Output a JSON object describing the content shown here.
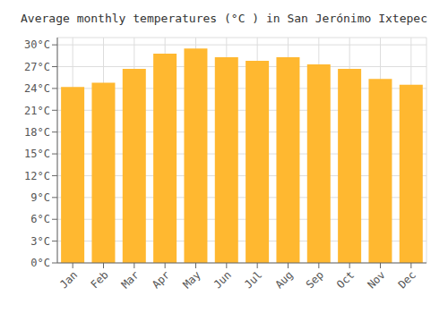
{
  "chart_data": {
    "type": "bar",
    "title": "Average monthly temperatures (°C ) in San Jerónimo Ixtepec",
    "categories": [
      "Jan",
      "Feb",
      "Mar",
      "Apr",
      "May",
      "Jun",
      "Jul",
      "Aug",
      "Sep",
      "Oct",
      "Nov",
      "Dec"
    ],
    "values": [
      24.2,
      24.8,
      26.7,
      28.8,
      29.5,
      28.3,
      27.8,
      28.3,
      27.3,
      26.7,
      25.3,
      24.5
    ],
    "color": "#FFB830",
    "ylim": [
      0,
      31
    ],
    "yticks": [
      {
        "value": 0,
        "label": "0°C"
      },
      {
        "value": 3,
        "label": "3°C"
      },
      {
        "value": 6,
        "label": "6°C"
      },
      {
        "value": 9,
        "label": "9°C"
      },
      {
        "value": 12,
        "label": "12°C"
      },
      {
        "value": 15,
        "label": "15°C"
      },
      {
        "value": 18,
        "label": "18°C"
      },
      {
        "value": 21,
        "label": "21°C"
      },
      {
        "value": 24,
        "label": "24°C"
      },
      {
        "value": 27,
        "label": "27°C"
      },
      {
        "value": 30,
        "label": "30°C"
      }
    ],
    "grid": true
  }
}
